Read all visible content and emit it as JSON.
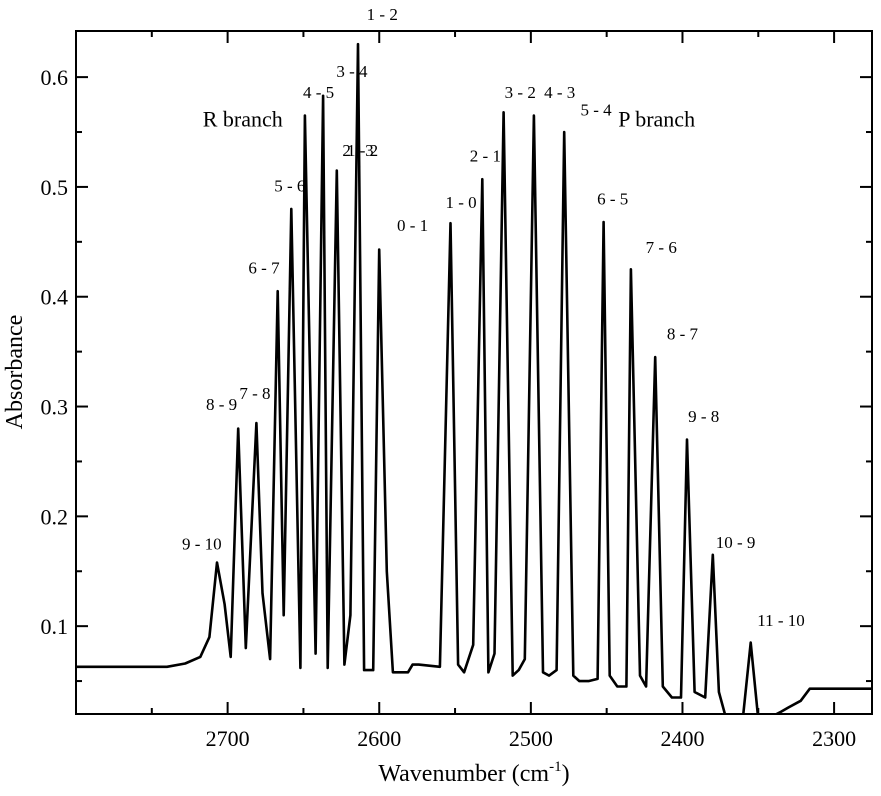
{
  "chart_data": {
    "type": "line",
    "xlabel": "Wavenumber (cm",
    "xlabel_sup": "-1",
    "xlabel_close": ")",
    "ylabel": "Absorbance",
    "xlim": [
      2800,
      2275
    ],
    "ylim": [
      0.02,
      0.642
    ],
    "x_reversed": true,
    "grid": false,
    "x_ticks": [
      2700,
      2600,
      2500,
      2400,
      2300
    ],
    "y_ticks": [
      0.1,
      0.2,
      0.3,
      0.4,
      0.5,
      0.6
    ],
    "x_ticks_display": [
      "2700",
      "2600",
      "2500",
      "2400",
      "2300"
    ],
    "y_ticks_display": [
      "0.1",
      "0.2",
      "0.3",
      "0.4",
      "0.5",
      "0.6"
    ],
    "series": [
      {
        "x": [
          2800,
          2740,
          2728,
          2718,
          2712,
          2707,
          2702,
          2698,
          2693,
          2688,
          2681,
          2677,
          2672,
          2667,
          2663,
          2658,
          2652,
          2649,
          2642,
          2637,
          2634,
          2628,
          2623,
          2619,
          2614,
          2610,
          2604,
          2600,
          2595,
          2591,
          2586,
          2581,
          2578,
          2574,
          2560,
          2553,
          2548,
          2544,
          2538,
          2532,
          2528,
          2524,
          2518,
          2512,
          2508,
          2504,
          2498,
          2492,
          2488,
          2483,
          2478,
          2472,
          2468,
          2462,
          2456,
          2452,
          2448,
          2443,
          2437,
          2434,
          2428,
          2424,
          2418,
          2413,
          2407,
          2401,
          2397,
          2392,
          2385,
          2380,
          2376,
          2371,
          2361,
          2355,
          2350,
          2345,
          2335,
          2330,
          2322,
          2316,
          2275
        ],
        "y": [
          0.063,
          0.063,
          0.066,
          0.072,
          0.09,
          0.158,
          0.12,
          0.072,
          0.28,
          0.08,
          0.285,
          0.13,
          0.07,
          0.405,
          0.11,
          0.48,
          0.062,
          0.565,
          0.075,
          0.583,
          0.062,
          0.515,
          0.065,
          0.11,
          0.63,
          0.06,
          0.06,
          0.443,
          0.15,
          0.058,
          0.058,
          0.058,
          0.065,
          0.065,
          0.063,
          0.467,
          0.065,
          0.058,
          0.083,
          0.507,
          0.058,
          0.075,
          0.568,
          0.055,
          0.06,
          0.07,
          0.565,
          0.058,
          0.055,
          0.06,
          0.55,
          0.055,
          0.05,
          0.05,
          0.052,
          0.468,
          0.055,
          0.045,
          0.045,
          0.425,
          0.055,
          0.045,
          0.345,
          0.045,
          0.035,
          0.035,
          0.27,
          0.04,
          0.035,
          0.165,
          0.04,
          0.015,
          0.005,
          0.085,
          0.015,
          0.015,
          0.022,
          0.026,
          0.032,
          0.043,
          0.043
        ]
      }
    ],
    "annotations": [
      {
        "text": "1 - 2",
        "x": 2598,
        "y": 0.652
      },
      {
        "text": "3 - 4",
        "x": 2618,
        "y": 0.6
      },
      {
        "text": "4 - 5",
        "x": 2640,
        "y": 0.581
      },
      {
        "text": "R branch",
        "x": 2690,
        "y": 0.555
      },
      {
        "text": "1 - 2",
        "x": 2611,
        "y": 0.528
      },
      {
        "text": "2 - 3",
        "x": 2614,
        "y": 0.528
      },
      {
        "text": "5 - 6",
        "x": 2659,
        "y": 0.496
      },
      {
        "text": "0 - 1",
        "x": 2578,
        "y": 0.46
      },
      {
        "text": "6 - 7",
        "x": 2676,
        "y": 0.421
      },
      {
        "text": "8 - 9",
        "x": 2704,
        "y": 0.297
      },
      {
        "text": "7 - 8",
        "x": 2682,
        "y": 0.307
      },
      {
        "text": "9 - 10",
        "x": 2717,
        "y": 0.17
      },
      {
        "text": "1 - 0",
        "x": 2546,
        "y": 0.481
      },
      {
        "text": "2 - 1",
        "x": 2530,
        "y": 0.523
      },
      {
        "text": "3 - 2",
        "x": 2507,
        "y": 0.581
      },
      {
        "text": "4 - 3",
        "x": 2481,
        "y": 0.581
      },
      {
        "text": "5 - 4",
        "x": 2457,
        "y": 0.565
      },
      {
        "text": "P branch",
        "x": 2417,
        "y": 0.555
      },
      {
        "text": "6 - 5",
        "x": 2446,
        "y": 0.484
      },
      {
        "text": "7 - 6",
        "x": 2414,
        "y": 0.44
      },
      {
        "text": "8 - 7",
        "x": 2400,
        "y": 0.361
      },
      {
        "text": "9 - 8",
        "x": 2386,
        "y": 0.286
      },
      {
        "text": "10 - 9",
        "x": 2365,
        "y": 0.171
      },
      {
        "text": "11 - 10",
        "x": 2335,
        "y": 0.1
      }
    ],
    "colors": {
      "line": "#000000",
      "axis": "#000000",
      "background": "#ffffff"
    }
  }
}
